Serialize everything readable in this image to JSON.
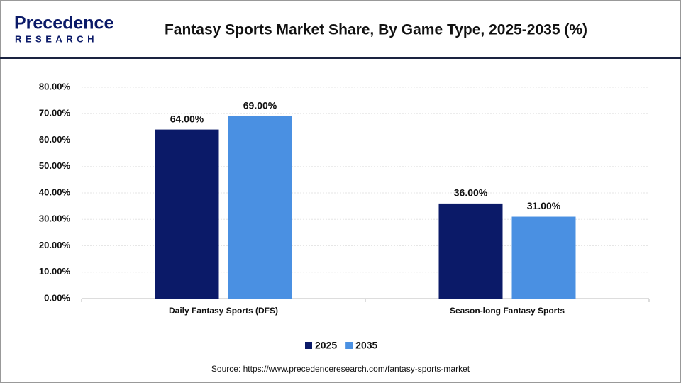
{
  "logo": {
    "name": "Precedence",
    "tagline": "RESEARCH"
  },
  "chart_data": {
    "type": "bar",
    "title": "Fantasy Sports Market Share, By Game Type, 2025-2035 (%)",
    "categories": [
      "Daily Fantasy Sports (DFS)",
      "Season-long Fantasy Sports"
    ],
    "series": [
      {
        "name": "2025",
        "color": "#0b1a68",
        "values": [
          64,
          36
        ],
        "value_labels": [
          "64.00%",
          "36.00%"
        ]
      },
      {
        "name": "2035",
        "color": "#4a90e2",
        "values": [
          69,
          31
        ],
        "value_labels": [
          "69.00%",
          "31.00%"
        ]
      }
    ],
    "ylim": [
      0,
      80
    ],
    "yticks": [
      {
        "value": 0,
        "label": "0.00%"
      },
      {
        "value": 10,
        "label": "10.00%"
      },
      {
        "value": 20,
        "label": "20.00%"
      },
      {
        "value": 30,
        "label": "30.00%"
      },
      {
        "value": 40,
        "label": "40.00%"
      },
      {
        "value": 50,
        "label": "50.00%"
      },
      {
        "value": 60,
        "label": "60.00%"
      },
      {
        "value": 70,
        "label": "70.00%"
      },
      {
        "value": 80,
        "label": "80.00%"
      }
    ],
    "grid": true,
    "legend": "bottom",
    "source": "Source: https://www.precedenceresearch.com/fantasy-sports-market"
  }
}
